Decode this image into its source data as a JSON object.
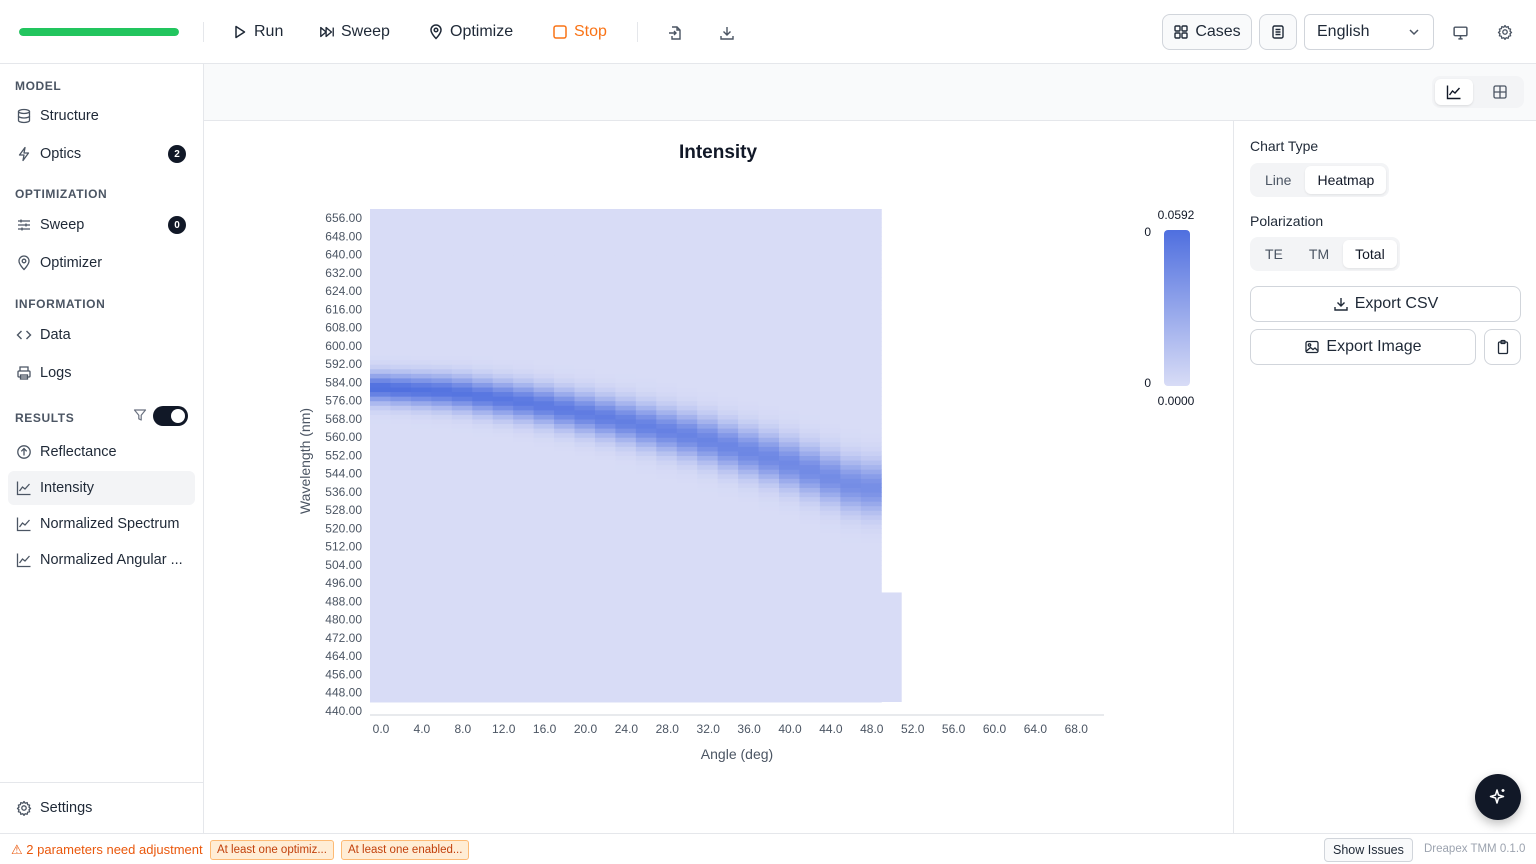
{
  "toolbar": {
    "progress": 1.0,
    "run_label": "Run",
    "sweep_label": "Sweep",
    "optimize_label": "Optimize",
    "stop_label": "Stop",
    "cases_label": "Cases",
    "language": "English"
  },
  "sidebar": {
    "sections": {
      "model": "MODEL",
      "optimization": "OPTIMIZATION",
      "information": "INFORMATION",
      "results": "RESULTS"
    },
    "items": {
      "structure": "Structure",
      "optics": "Optics",
      "optics_badge": "2",
      "sweep": "Sweep",
      "sweep_badge": "0",
      "optimizer": "Optimizer",
      "data": "Data",
      "logs": "Logs",
      "reflectance": "Reflectance",
      "intensity": "Intensity",
      "normalized_spectrum": "Normalized Spectrum",
      "normalized_angular": "Normalized Angular ...",
      "settings": "Settings"
    },
    "results_toggle_on": true
  },
  "right_panel": {
    "chart_type_label": "Chart Type",
    "chart_type_options": [
      "Line",
      "Heatmap"
    ],
    "chart_type_selected": "Heatmap",
    "polarization_label": "Polarization",
    "polarization_options": [
      "TE",
      "TM",
      "Total"
    ],
    "polarization_selected": "Total",
    "export_csv_label": "Export CSV",
    "export_image_label": "Export Image"
  },
  "footer": {
    "warning": "⚠ 2 parameters need adjustment",
    "pill_1": "At least one optimiz...",
    "pill_2": "At least one enabled...",
    "show_issues_label": "Show Issues",
    "version": "Dreapex TMM 0.1.0"
  },
  "colors": {
    "accent_green": "#22c55e",
    "stop_orange": "#f97316",
    "heat_low": "#d8dcf6",
    "heat_high": "#4f6fdf"
  },
  "chart_data": {
    "type": "heatmap",
    "title": "Intensity",
    "xlabel": "Angle (deg)",
    "ylabel": "Wavelength (nm)",
    "x_ticks": [
      "0.0",
      "4.0",
      "8.0",
      "12.0",
      "16.0",
      "20.0",
      "24.0",
      "28.0",
      "32.0",
      "36.0",
      "40.0",
      "44.0",
      "48.0",
      "52.0",
      "56.0",
      "60.0",
      "64.0",
      "68.0"
    ],
    "y_ticks": [
      "656.00",
      "648.00",
      "640.00",
      "632.00",
      "624.00",
      "616.00",
      "608.00",
      "600.00",
      "592.00",
      "584.00",
      "576.00",
      "568.00",
      "560.00",
      "552.00",
      "544.00",
      "536.00",
      "528.00",
      "520.00",
      "512.00",
      "504.00",
      "496.00",
      "488.00",
      "480.00",
      "472.00",
      "464.00",
      "456.00",
      "448.00",
      "440.00"
    ],
    "x_range": [
      0,
      72
    ],
    "y_range": [
      440,
      656
    ],
    "data_x_max": 50,
    "extra_column": {
      "x": 50,
      "x_end": 52,
      "y_max": 488
    },
    "peak_center_by_angle": [
      {
        "x": 0,
        "y": 578
      },
      {
        "x": 8,
        "y": 576
      },
      {
        "x": 16,
        "y": 571
      },
      {
        "x": 24,
        "y": 564
      },
      {
        "x": 32,
        "y": 556
      },
      {
        "x": 40,
        "y": 546
      },
      {
        "x": 48,
        "y": 534
      }
    ],
    "colorbar": {
      "max_label": "0.0592",
      "min_label": "0.0000",
      "top_tick": "0",
      "bottom_tick": "0",
      "min": 0.0,
      "max": 0.0592
    }
  }
}
